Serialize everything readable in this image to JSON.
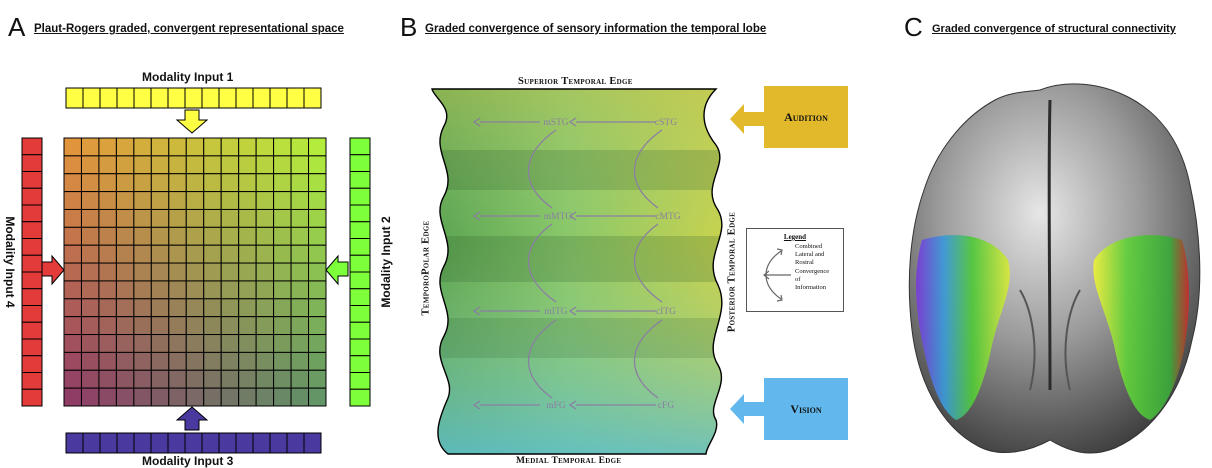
{
  "panel_a": {
    "letter": "A",
    "title": "Plaut-Rogers graded, convergent representational space",
    "input1": "Modality Input 1",
    "input2": "Modality Input 2",
    "input3": "Modality Input 3",
    "input4": "Modality Input 4",
    "colors": {
      "top": "#ffff44",
      "right": "#7dff3a",
      "bottom": "#4a3aa0",
      "left": "#e33a3a"
    }
  },
  "panel_b": {
    "letter": "B",
    "title": "Graded convergence of sensory information the temporal lobe",
    "superior": "Superior Temporal Edge",
    "medial": "Medial Temporal Edge",
    "temporopolar": "TemporoPolar Edge",
    "posterior": "Posterior Temporal Edge",
    "audition": "Audition",
    "vision": "Vision",
    "nodes": {
      "mstg": "mSTG",
      "cstg": "cSTG",
      "mmtg": "mMTG",
      "cmtg": "cMTG",
      "mitg": "mITG",
      "citg": "cITG",
      "mfg": "mFG",
      "cfg": "cFG"
    },
    "legend": {
      "title": "Legend",
      "lines": [
        "Combined",
        "Lateral and",
        "Rostral",
        "Convergence",
        "of",
        "Information"
      ]
    },
    "colors": {
      "audition": "#e2b92a",
      "vision": "#62b8ec"
    }
  },
  "panel_c": {
    "letter": "C",
    "title": "Graded convergence of structural connectivity"
  }
}
